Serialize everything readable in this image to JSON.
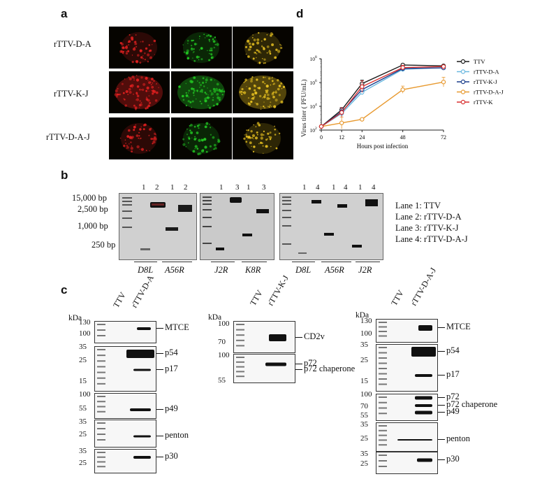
{
  "panels": {
    "a": "a",
    "b": "b",
    "c": "c",
    "d": "d"
  },
  "panel_a": {
    "row_labels": [
      "rTTV-D-A",
      "rTTV-K-J",
      "rTTV-D-A-J"
    ],
    "colors": {
      "red": "#e02020",
      "green": "#22c422",
      "merge": "#e6c020",
      "background": "#060400"
    }
  },
  "panel_b": {
    "ladder_labels": [
      "15,000 bp",
      "2,500 bp",
      "1,000 bp",
      "250 bp"
    ],
    "gel1": {
      "lanes": [
        "1",
        "2",
        "1",
        "2"
      ],
      "genes": [
        "D8L",
        "A56R"
      ]
    },
    "gel2": {
      "lanes": [
        "1",
        "3",
        "1",
        "3"
      ],
      "genes": [
        "J2R",
        "K8R"
      ]
    },
    "gel3": {
      "lanes": [
        "1",
        "4",
        "1",
        "4",
        "1",
        "4"
      ],
      "genes": [
        "D8L",
        "A56R",
        "J2R"
      ]
    },
    "legend": [
      "Lane 1: TTV",
      "Lane 2: rTTV-D-A",
      "Lane 3: rTTV-K-J",
      "Lane 4: rTTV-D-A-J"
    ]
  },
  "panel_c": {
    "kda": "kDa",
    "blot1": {
      "samples": [
        "TTV",
        "rTTV-D-A"
      ],
      "strips": [
        {
          "markers": [
            "130",
            "100"
          ],
          "protein": "MTCE"
        },
        {
          "markers": [
            "35",
            "25",
            "15"
          ],
          "protein": "p54",
          "protein2": "p17"
        },
        {
          "markers": [
            "100",
            "55"
          ],
          "protein": "p49"
        },
        {
          "markers": [
            "35",
            "25"
          ],
          "protein": "penton"
        },
        {
          "markers": [
            "35",
            "25"
          ],
          "protein": "p30"
        }
      ]
    },
    "blot2": {
      "samples": [
        "TTV",
        "rTTV-K-J"
      ],
      "strips": [
        {
          "markers": [
            "100",
            "70"
          ],
          "protein": "CD2v"
        },
        {
          "markers": [
            "100",
            "55"
          ],
          "protein": "p72",
          "protein2": "p72 chaperone"
        }
      ]
    },
    "blot3": {
      "samples": [
        "TTV",
        "rTTV-D-A-J"
      ],
      "strips": [
        {
          "markers": [
            "130",
            "100"
          ],
          "protein": "MTCE"
        },
        {
          "markers": [
            "35",
            "25",
            "15"
          ],
          "protein": "p54",
          "protein2": "p17"
        },
        {
          "markers": [
            "100",
            "70",
            "55"
          ],
          "protein": "p72",
          "protein2": "p72 chaperone",
          "protein3": "p49"
        },
        {
          "markers": [
            "35",
            "25"
          ],
          "protein": "penton"
        },
        {
          "markers": [
            "35",
            "25"
          ],
          "protein": "p30"
        }
      ]
    }
  },
  "chart_data": {
    "type": "line",
    "xlabel": "Hours post infection",
    "ylabel": "Virus titer ( PFU/mL)",
    "x": [
      0,
      12,
      24,
      48,
      72
    ],
    "x_ticks": [
      "0",
      "12",
      "24",
      "48",
      "72"
    ],
    "y_scale": "log",
    "ylim": [
      100,
      100000000
    ],
    "y_ticks": [
      "10",
      "10",
      "10",
      "10"
    ],
    "y_tick_exponents": [
      "2",
      "4",
      "6",
      "8"
    ],
    "legend_position": "right",
    "series": [
      {
        "name": "TTV",
        "color": "#1a1a1a",
        "values": [
          200,
          5000,
          800000,
          30000000,
          25000000
        ],
        "err": [
          0.1,
          0.2,
          0.3,
          0.1,
          0.1
        ]
      },
      {
        "name": "rTTV-D-A",
        "color": "#6ab8e0",
        "values": [
          200,
          2500,
          150000,
          13000000,
          18000000
        ],
        "err": [
          0.1,
          0.3,
          0.2,
          0.2,
          0.1
        ]
      },
      {
        "name": "rTTV-K-J",
        "color": "#1c3f8c",
        "values": [
          200,
          3500,
          250000,
          15000000,
          17000000
        ],
        "err": [
          0.1,
          0.3,
          0.2,
          0.2,
          0.1
        ]
      },
      {
        "name": "rTTV-D-A-J",
        "color": "#e89a30",
        "values": [
          200,
          400,
          800,
          250000,
          1100000
        ],
        "err": [
          0.1,
          0.5,
          0.1,
          0.3,
          0.4
        ]
      },
      {
        "name": "rTTV-K",
        "color": "#d83030",
        "values": [
          200,
          3000,
          450000,
          18000000,
          22000000
        ],
        "err": [
          0.1,
          0.4,
          0.5,
          0.2,
          0.1
        ]
      }
    ]
  }
}
